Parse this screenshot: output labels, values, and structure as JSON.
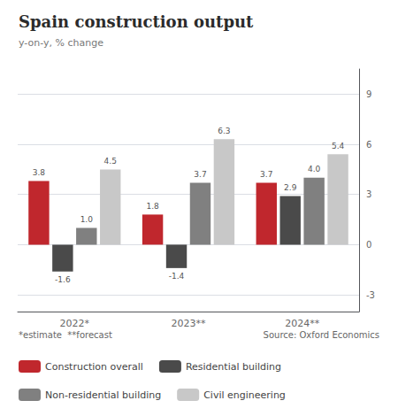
{
  "chart_data": {
    "type": "bar",
    "title": "Spain construction output",
    "subtitle": "y-on-y, % change",
    "annotations": [
      "*estimate  **forecast",
      "Source: Oxford Economics"
    ],
    "categories": [
      "2022*",
      "2023**",
      "2024**"
    ],
    "series": [
      {
        "name": "Construction overall",
        "color": "#c0272d",
        "values": [
          3.8,
          1.8,
          3.7
        ]
      },
      {
        "name": "Residential building",
        "color": "#4a4a4a",
        "values": [
          -1.6,
          -1.4,
          2.9
        ]
      },
      {
        "name": "Non-residential building",
        "color": "#808080",
        "values": [
          1.0,
          3.7,
          4.0
        ],
        "value_labels": [
          "1.0",
          "3.7",
          "4.0"
        ]
      },
      {
        "name": "Civil engineering",
        "color": "#c8c8c8",
        "values": [
          4.5,
          6.3,
          5.4
        ]
      }
    ],
    "ylim": [
      -4.0,
      10.5
    ],
    "yticks": [
      -3,
      0,
      3,
      6,
      9
    ],
    "grid": true,
    "legend": "bottom",
    "data_labels": true
  }
}
